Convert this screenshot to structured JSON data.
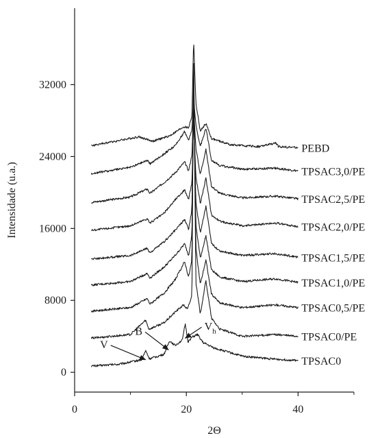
{
  "chart_data": {
    "type": "line",
    "xlabel": "2Θ",
    "ylabel": "Intensidade (u.a.)",
    "xlim": [
      0,
      50
    ],
    "ylim": [
      -2200,
      40500
    ],
    "x_ticks": [
      0,
      20,
      40
    ],
    "y_ticks": [
      0,
      8000,
      16000,
      24000,
      32000
    ],
    "x_tick_labels": [
      "0",
      "20",
      "40"
    ],
    "y_tick_labels": [
      "0",
      "8000",
      "16000",
      "24000",
      "32000"
    ],
    "grid": false,
    "legend": "labels at right end of each curve",
    "line_color": "#1a1a1a",
    "series": [
      {
        "name": "TPSAC0",
        "baseline": 1000,
        "values": [
          [
            3,
            700
          ],
          [
            8,
            900
          ],
          [
            12,
            1400
          ],
          [
            12.7,
            2400
          ],
          [
            13.4,
            1500
          ],
          [
            16,
            2000
          ],
          [
            17,
            3500
          ],
          [
            18,
            3000
          ],
          [
            19.3,
            3600
          ],
          [
            19.8,
            5400
          ],
          [
            20.3,
            3400
          ],
          [
            21,
            3900
          ],
          [
            22,
            4200
          ],
          [
            23,
            3300
          ],
          [
            25,
            2700
          ],
          [
            30,
            1800
          ],
          [
            35,
            1500
          ],
          [
            40,
            1300
          ]
        ]
      },
      {
        "name": "TPSAC0/PE",
        "baseline": 3700,
        "values": [
          [
            3,
            3800
          ],
          [
            10,
            4200
          ],
          [
            12.7,
            5800
          ],
          [
            13.3,
            4800
          ],
          [
            16,
            5500
          ],
          [
            18,
            6700
          ],
          [
            19.5,
            7500
          ],
          [
            20.2,
            7000
          ],
          [
            21.0,
            8500
          ],
          [
            21.3,
            37100
          ],
          [
            21.7,
            10000
          ],
          [
            22.5,
            6500
          ],
          [
            23.5,
            10200
          ],
          [
            24.5,
            6000
          ],
          [
            26,
            4800
          ],
          [
            30,
            4000
          ],
          [
            36,
            4200
          ],
          [
            40,
            4000
          ]
        ]
      },
      {
        "name": "TPSAC0,5/PE",
        "baseline": 6700,
        "values": [
          [
            3,
            6800
          ],
          [
            10,
            7200
          ],
          [
            13,
            8200
          ],
          [
            13.5,
            7600
          ],
          [
            16,
            8800
          ],
          [
            18,
            10300
          ],
          [
            19.7,
            12300
          ],
          [
            20.4,
            10600
          ],
          [
            21.0,
            12500
          ],
          [
            21.3,
            34500
          ],
          [
            21.7,
            13800
          ],
          [
            22.5,
            9800
          ],
          [
            23.5,
            12500
          ],
          [
            24.5,
            8700
          ],
          [
            26,
            7700
          ],
          [
            30,
            7200
          ],
          [
            36,
            7500
          ],
          [
            40,
            7200
          ]
        ]
      },
      {
        "name": "TPSAC1,0/PE",
        "baseline": 9500,
        "values": [
          [
            3,
            9700
          ],
          [
            10,
            10100
          ],
          [
            13,
            11000
          ],
          [
            13.5,
            10500
          ],
          [
            16,
            11700
          ],
          [
            18,
            13000
          ],
          [
            19.7,
            14300
          ],
          [
            20.4,
            13000
          ],
          [
            21.0,
            15300
          ],
          [
            21.3,
            31400
          ],
          [
            21.7,
            16400
          ],
          [
            22.5,
            12700
          ],
          [
            23.5,
            15200
          ],
          [
            24.5,
            11400
          ],
          [
            26,
            10600
          ],
          [
            30,
            10100
          ],
          [
            36,
            10400
          ],
          [
            40,
            10000
          ]
        ]
      },
      {
        "name": "TPSAC1,5/PE",
        "baseline": 12300,
        "values": [
          [
            3,
            12600
          ],
          [
            10,
            13000
          ],
          [
            13,
            13800
          ],
          [
            13.5,
            13300
          ],
          [
            16,
            14500
          ],
          [
            18,
            15800
          ],
          [
            19.7,
            17000
          ],
          [
            20.4,
            15900
          ],
          [
            21.0,
            18100
          ],
          [
            21.3,
            29900
          ],
          [
            21.7,
            19000
          ],
          [
            22.5,
            15500
          ],
          [
            23.5,
            18500
          ],
          [
            24.5,
            14300
          ],
          [
            26,
            13500
          ],
          [
            30,
            13000
          ],
          [
            36,
            13200
          ],
          [
            40,
            12800
          ]
        ]
      },
      {
        "name": "TPSAC2,0/PE",
        "baseline": 15500,
        "values": [
          [
            3,
            15800
          ],
          [
            10,
            16300
          ],
          [
            13,
            17100
          ],
          [
            13.5,
            16600
          ],
          [
            16,
            17700
          ],
          [
            18,
            19200
          ],
          [
            19.7,
            20300
          ],
          [
            20.4,
            19200
          ],
          [
            21.0,
            21100
          ],
          [
            21.3,
            28200
          ],
          [
            21.7,
            21800
          ],
          [
            22.5,
            18800
          ],
          [
            23.5,
            21600
          ],
          [
            24.5,
            17500
          ],
          [
            26,
            16800
          ],
          [
            30,
            16300
          ],
          [
            36,
            16600
          ],
          [
            40,
            16200
          ]
        ]
      },
      {
        "name": "TPSAC2,5/PE",
        "baseline": 18700,
        "values": [
          [
            3,
            18900
          ],
          [
            10,
            19500
          ],
          [
            13,
            20400
          ],
          [
            13.5,
            19900
          ],
          [
            16,
            21100
          ],
          [
            18,
            22200
          ],
          [
            19.7,
            23400
          ],
          [
            20.4,
            22400
          ],
          [
            21.0,
            24200
          ],
          [
            21.3,
            29600
          ],
          [
            21.7,
            25000
          ],
          [
            22.5,
            22000
          ],
          [
            23.5,
            24800
          ],
          [
            24.5,
            20700
          ],
          [
            26,
            19900
          ],
          [
            30,
            19400
          ],
          [
            36,
            19600
          ],
          [
            40,
            19300
          ]
        ]
      },
      {
        "name": "TPSAC3,0/PE",
        "baseline": 22000,
        "values": [
          [
            3,
            22100
          ],
          [
            10,
            22800
          ],
          [
            13,
            23600
          ],
          [
            13.5,
            23200
          ],
          [
            16,
            24300
          ],
          [
            18,
            25200
          ],
          [
            19.7,
            26800
          ],
          [
            20.4,
            25800
          ],
          [
            21.0,
            27000
          ],
          [
            21.3,
            30600
          ],
          [
            21.7,
            27500
          ],
          [
            22.5,
            25100
          ],
          [
            23.5,
            27200
          ],
          [
            24.5,
            23600
          ],
          [
            26,
            23000
          ],
          [
            30,
            22600
          ],
          [
            36,
            22700
          ],
          [
            40,
            22400
          ]
        ]
      },
      {
        "name": "PEBD",
        "baseline": 25000,
        "values": [
          [
            3,
            25200
          ],
          [
            8,
            25800
          ],
          [
            11.5,
            26200
          ],
          [
            14,
            25700
          ],
          [
            17,
            26300
          ],
          [
            19.5,
            27300
          ],
          [
            20.4,
            27200
          ],
          [
            21.0,
            28500
          ],
          [
            21.3,
            37100
          ],
          [
            21.7,
            30000
          ],
          [
            22.5,
            26800
          ],
          [
            23.5,
            27700
          ],
          [
            24.5,
            26000
          ],
          [
            28,
            25300
          ],
          [
            33,
            25100
          ],
          [
            36,
            25500
          ],
          [
            36.5,
            25100
          ],
          [
            40,
            25000
          ]
        ]
      }
    ],
    "annotations": [
      {
        "label": "V",
        "subscript": "",
        "x": 12.7,
        "y": 1400
      },
      {
        "label": "B",
        "subscript": "",
        "x": 16.8,
        "y": 2500
      },
      {
        "label": "V",
        "subscript": "h",
        "x": 19.8,
        "y": 3800
      }
    ]
  }
}
